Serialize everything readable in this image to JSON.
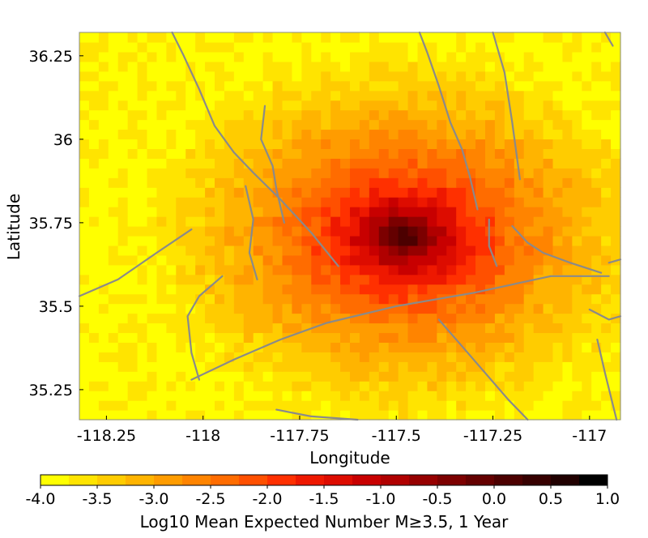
{
  "chart_data": {
    "type": "heatmap",
    "title": "",
    "xlabel": "Longitude",
    "ylabel": "Latitude",
    "xlim": [
      -118.32,
      -116.92
    ],
    "ylim": [
      35.16,
      36.32
    ],
    "x_ticks": [
      -118.25,
      -118,
      -117.75,
      -117.5,
      -117.25,
      -117
    ],
    "x_tick_labels": [
      "-118.25",
      "-118",
      "-117.75",
      "-117.5",
      "-117.25",
      "-117"
    ],
    "y_ticks": [
      35.25,
      35.5,
      35.75,
      36,
      36.25
    ],
    "y_tick_labels": [
      "35.25",
      "35.5",
      "35.75",
      "36",
      "36.25"
    ],
    "hotspot": {
      "lon": -117.48,
      "lat": 35.71,
      "peak_log10": 0.6
    },
    "background_log10": -3.3,
    "colorbar": {
      "label": "Log10 Mean Expected Number M≥3.5, 1 Year",
      "min": -4.0,
      "max": 1.0,
      "ticks": [
        -4.0,
        -3.5,
        -3.0,
        -2.5,
        -2.0,
        -1.5,
        -1.0,
        -0.5,
        0.0,
        0.5,
        1.0
      ],
      "tick_labels": [
        "-4.0",
        "-3.5",
        "-3.0",
        "-2.5",
        "-2.0",
        "-1.5",
        "-1.0",
        "-0.5",
        "0.0",
        "0.5",
        "1.0"
      ],
      "colors": [
        "#ffff00",
        "#ffe400",
        "#ffcc00",
        "#ffb400",
        "#ff9c00",
        "#ff8400",
        "#ff6c00",
        "#ff5000",
        "#ff3000",
        "#ee1800",
        "#dd0c00",
        "#c80000",
        "#b00000",
        "#960000",
        "#7c0000",
        "#640000",
        "#4c0000",
        "#360000",
        "#200000",
        "#000000"
      ]
    },
    "faults": [
      {
        "lon": [
          -118.08,
          -118.05,
          -118.01,
          -117.97,
          -117.92,
          -117.87,
          -117.8,
          -117.72,
          -117.65
        ],
        "lat": [
          36.32,
          36.25,
          36.15,
          36.04,
          35.96,
          35.9,
          35.82,
          35.72,
          35.62
        ]
      },
      {
        "lon": [
          -117.89,
          -117.87,
          -117.88,
          -117.86
        ],
        "lat": [
          35.86,
          35.76,
          35.66,
          35.58
        ]
      },
      {
        "lon": [
          -117.84,
          -117.85,
          -117.82,
          -117.81,
          -117.79
        ],
        "lat": [
          36.1,
          36.0,
          35.92,
          35.85,
          35.75
        ]
      },
      {
        "lon": [
          -118.32,
          -118.22,
          -118.12,
          -118.03
        ],
        "lat": [
          35.53,
          35.58,
          35.66,
          35.73
        ]
      },
      {
        "lon": [
          -117.95,
          -118.01,
          -118.04,
          -118.03,
          -118.01
        ],
        "lat": [
          35.59,
          35.53,
          35.47,
          35.36,
          35.28
        ]
      },
      {
        "lon": [
          -118.03,
          -117.92,
          -117.8,
          -117.68,
          -117.5,
          -117.3,
          -117.1,
          -116.95
        ],
        "lat": [
          35.28,
          35.34,
          35.4,
          35.45,
          35.5,
          35.54,
          35.59,
          35.59
        ]
      },
      {
        "lon": [
          -117.44,
          -117.42,
          -117.39,
          -117.36,
          -117.33,
          -117.31,
          -117.29
        ],
        "lat": [
          36.32,
          36.26,
          36.16,
          36.05,
          35.97,
          35.89,
          35.79
        ]
      },
      {
        "lon": [
          -117.25,
          -117.22,
          -117.2,
          -117.18
        ],
        "lat": [
          36.32,
          36.2,
          36.05,
          35.88
        ]
      },
      {
        "lon": [
          -117.2,
          -117.16,
          -117.12,
          -117.05,
          -116.97
        ],
        "lat": [
          35.74,
          35.69,
          35.66,
          35.63,
          35.6
        ]
      },
      {
        "lon": [
          -117.39,
          -117.33,
          -117.27,
          -117.21,
          -117.16
        ],
        "lat": [
          35.46,
          35.38,
          35.3,
          35.22,
          35.16
        ]
      },
      {
        "lon": [
          -116.98,
          -116.96,
          -116.93
        ],
        "lat": [
          35.4,
          35.3,
          35.16
        ]
      },
      {
        "lon": [
          -117.0,
          -116.95,
          -116.92
        ],
        "lat": [
          35.49,
          35.46,
          35.47
        ]
      },
      {
        "lon": [
          -117.81,
          -117.72,
          -117.6
        ],
        "lat": [
          35.19,
          35.17,
          35.16
        ]
      },
      {
        "lon": [
          -117.26,
          -117.26,
          -117.24
        ],
        "lat": [
          35.76,
          35.68,
          35.62
        ]
      },
      {
        "lon": [
          -116.96,
          -116.94
        ],
        "lat": [
          36.32,
          36.28
        ]
      },
      {
        "lon": [
          -116.95,
          -116.92
        ],
        "lat": [
          35.63,
          35.64
        ]
      }
    ]
  }
}
